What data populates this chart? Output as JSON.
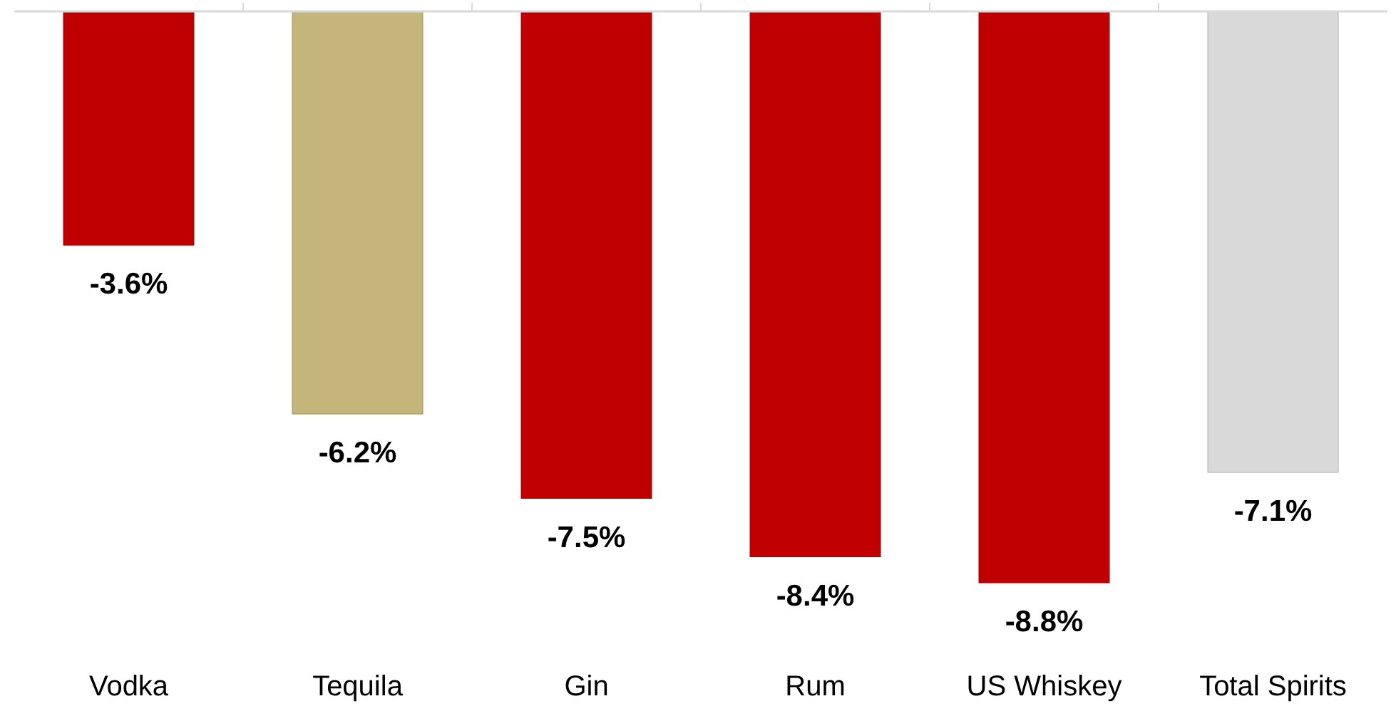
{
  "chart_data": {
    "type": "bar",
    "categories": [
      "Vodka",
      "Tequila",
      "Gin",
      "Rum",
      "US Whiskey",
      "Total Spirits"
    ],
    "values": [
      -3.6,
      -6.2,
      -7.5,
      -8.4,
      -8.8,
      -7.1
    ],
    "value_labels": [
      "-3.6%",
      "-6.2%",
      "-7.5%",
      "-8.4%",
      "-8.8%",
      "-7.1%"
    ],
    "colors": [
      "#c00000",
      "#c4b57a",
      "#c00000",
      "#c00000",
      "#c00000",
      "#d9d9d9"
    ],
    "tick_labels": "x"
  }
}
